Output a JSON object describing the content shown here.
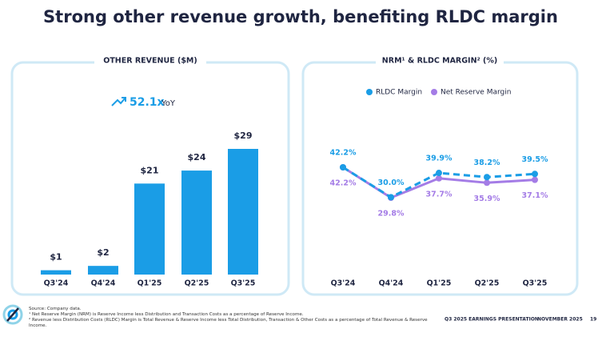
{
  "title": "Strong other revenue growth, benefiting RLDC margin",
  "chart_data": [
    {
      "type": "bar",
      "title": "OTHER REVENUE ($M)",
      "annotation": "52.1x",
      "annotation_note": "YoY",
      "categories": [
        "Q3'24",
        "Q4'24",
        "Q1'25",
        "Q2'25",
        "Q3'25"
      ],
      "values": [
        1,
        2,
        21,
        24,
        29
      ],
      "value_labels": [
        "$1",
        "$2",
        "$21",
        "$24",
        "$29"
      ],
      "color": "#1a9de6"
    },
    {
      "type": "line",
      "title": "NRM¹ & RLDC MARGIN² (%)",
      "categories": [
        "Q3'24",
        "Q4'24",
        "Q1'25",
        "Q2'25",
        "Q3'25"
      ],
      "series": [
        {
          "name": "RLDC Margin",
          "color": "#1a9de6",
          "line_style": "dashed",
          "label_position": "above",
          "values": [
            42.2,
            30.0,
            39.9,
            38.2,
            39.5
          ],
          "value_labels": [
            "42.2%",
            "30.0%",
            "39.9%",
            "38.2%",
            "39.5%"
          ]
        },
        {
          "name": "Net Reserve Margin",
          "color": "#a47ce6",
          "line_style": "solid",
          "label_position": "below",
          "values": [
            42.2,
            29.8,
            37.7,
            35.9,
            37.1
          ],
          "value_labels": [
            "42.2%",
            "29.8%",
            "37.7%",
            "35.9%",
            "37.1%"
          ]
        }
      ]
    }
  ],
  "footer": {
    "notes": [
      "Source: Company data.",
      "¹ Net Reserve Margin (NRM) is Reserve Income less Distribution and Transaction Costs as a percentage of Reserve Income.",
      "² Revenue less Distribution Costs (RLDC) Margin is Total Revenue & Reserve Income less Total Distribution, Transaction & Other Costs as a percentage of Total Revenue & Reserve Income."
    ],
    "presentation": "Q3 2025 EARNINGS PRESENTATION",
    "date": "NOVEMBER 2025",
    "page": 19
  }
}
